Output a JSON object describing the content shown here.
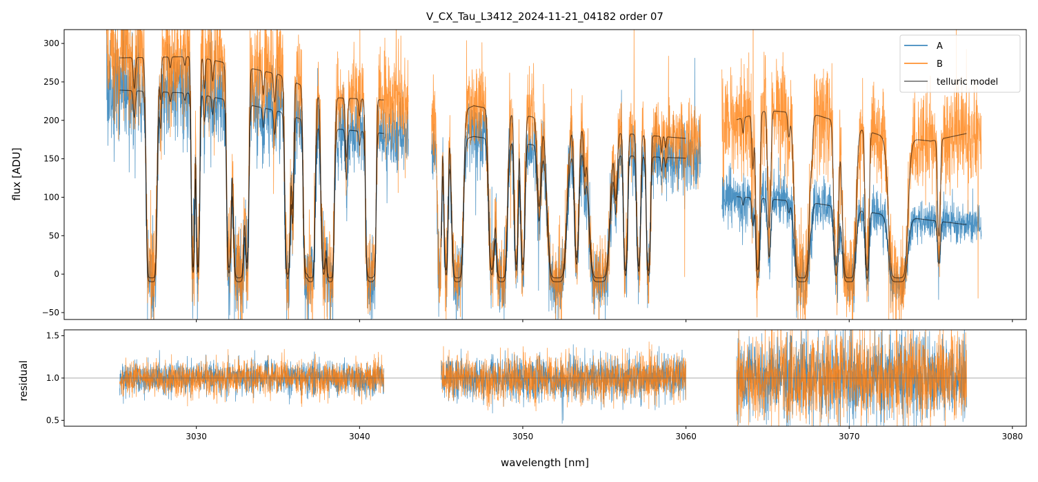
{
  "title": "V_CX_Tau_L3412_2024-11-21_04182  order 07",
  "legend": {
    "placement": "upper-right",
    "entries": [
      {
        "label": "A",
        "color": "#1f77b4"
      },
      {
        "label": "B",
        "color": "#ff7f0e"
      },
      {
        "label": "telluric model",
        "color": "#666666"
      }
    ]
  },
  "chart_data": [
    {
      "type": "line",
      "panel": "flux",
      "title": "V_CX_Tau_L3412_2024-11-21_04182  order 07",
      "xlabel": "",
      "ylabel": "flux [ADU]",
      "xlim": [
        3021.9,
        3080.85
      ],
      "ylim": [
        -59,
        318
      ],
      "xticks": [
        3030,
        3040,
        3050,
        3060,
        3070,
        3080
      ],
      "yticks": [
        300,
        250,
        200,
        150,
        100,
        50,
        0,
        -50
      ],
      "ytick_labels": [
        "300",
        "250",
        "200",
        "150",
        "100",
        "50",
        "0",
        "−50"
      ],
      "grid": false,
      "series": [
        {
          "name": "A",
          "color": "#1f77b4",
          "offset": -10,
          "noise": 0.13
        },
        {
          "name": "B",
          "color": "#ff7f0e",
          "offset": -5,
          "noise": 0.13
        },
        {
          "name": "telluric model",
          "color": "#000000",
          "alpha": 0.6
        }
      ],
      "data_ranges_nm": [
        [
          3024.5,
          3043.0
        ],
        [
          3044.4,
          3060.9
        ],
        [
          3062.2,
          3078.1
        ]
      ],
      "model_ranges_nm": [
        [
          3025.3,
          3041.5
        ],
        [
          3045.0,
          3060.0
        ],
        [
          3063.1,
          3077.2
        ]
      ],
      "continuum": [
        {
          "range": 0,
          "points": [
            [
              3024.5,
              250,
              286
            ],
            [
              3030,
              245,
              288
            ],
            [
              3035,
              222,
              265
            ],
            [
              3038,
              200,
              235
            ],
            [
              3043,
              190,
              230
            ]
          ]
        },
        {
          "range": 1,
          "points": [
            [
              3044.4,
              175,
              200
            ],
            [
              3047,
              189,
              224
            ],
            [
              3050,
              180,
              212
            ],
            [
              3055,
              165,
              190
            ],
            [
              3060.9,
              160,
              180
            ]
          ]
        },
        {
          "range": 2,
          "points": [
            [
              3062.2,
              112,
              200
            ],
            [
              3065,
              108,
              218
            ],
            [
              3068,
              102,
              212
            ],
            [
              3072,
              88,
              185
            ],
            [
              3075,
              80,
              178
            ],
            [
              3078.1,
              72,
              192
            ]
          ]
        }
      ],
      "absorption_lines": [
        [
          3026.2,
          0.15,
          0.06
        ],
        [
          3027.1,
          3,
          0.1
        ],
        [
          3027.3,
          8,
          0.14
        ],
        [
          3027.8,
          0.2,
          0.05
        ],
        [
          3028.4,
          0.05,
          0.05
        ],
        [
          3029.3,
          0.04,
          0.05
        ],
        [
          3029.8,
          3,
          0.07
        ],
        [
          3030.1,
          3,
          0.07
        ],
        [
          3030.5,
          0.15,
          0.05
        ],
        [
          3031.0,
          0.1,
          0.05
        ],
        [
          3032.0,
          3,
          0.09
        ],
        [
          3032.6,
          8,
          0.17
        ],
        [
          3033.1,
          2.5,
          0.08
        ],
        [
          3034.1,
          0.12,
          0.05
        ],
        [
          3034.8,
          0.15,
          0.06
        ],
        [
          3035.6,
          4,
          0.1
        ],
        [
          3035.9,
          1,
          0.06
        ],
        [
          3036.7,
          3,
          0.09
        ],
        [
          3037.0,
          8,
          0.13
        ],
        [
          3037.8,
          3,
          0.1
        ],
        [
          3038.2,
          8,
          0.12
        ],
        [
          3039.2,
          0.4,
          0.06
        ],
        [
          3040.0,
          0.1,
          0.05
        ],
        [
          3040.5,
          3,
          0.08
        ],
        [
          3040.7,
          8,
          0.1
        ],
        [
          3040.9,
          3,
          0.07
        ],
        [
          3044.9,
          3,
          0.08
        ],
        [
          3045.3,
          3,
          0.08
        ],
        [
          3046.0,
          8,
          0.17
        ],
        [
          3048.1,
          3,
          0.12
        ],
        [
          3048.7,
          8,
          0.17
        ],
        [
          3049.6,
          2.5,
          0.08
        ],
        [
          3050.0,
          2.5,
          0.09
        ],
        [
          3051.0,
          0.8,
          0.1
        ],
        [
          3052.1,
          8,
          0.28
        ],
        [
          3053.3,
          2,
          0.1
        ],
        [
          3053.8,
          0.3,
          0.06
        ],
        [
          3054.7,
          8,
          0.3
        ],
        [
          3055.7,
          0.6,
          0.08
        ],
        [
          3056.3,
          3,
          0.08
        ],
        [
          3057.1,
          2.5,
          0.08
        ],
        [
          3057.7,
          3,
          0.08
        ],
        [
          3058.5,
          0.12,
          0.04
        ],
        [
          3058.75,
          0.08,
          0.04
        ],
        [
          3063.5,
          0.1,
          0.05
        ],
        [
          3064.1,
          0.4,
          0.06
        ],
        [
          3064.4,
          3,
          0.08
        ],
        [
          3065.1,
          1.2,
          0.08
        ],
        [
          3066.3,
          0.15,
          0.06
        ],
        [
          3067.1,
          8,
          0.22
        ],
        [
          3067.7,
          0.2,
          0.06
        ],
        [
          3069.2,
          2.5,
          0.1
        ],
        [
          3070.0,
          8,
          0.2
        ],
        [
          3071.1,
          3,
          0.08
        ],
        [
          3072.6,
          0.2,
          0.08
        ],
        [
          3073.0,
          8,
          0.28
        ],
        [
          3075.5,
          1.2,
          0.07
        ]
      ],
      "random_seed": 7
    },
    {
      "type": "line",
      "panel": "residual",
      "xlabel": "wavelength [nm]",
      "ylabel": "residual",
      "xlim": [
        3021.9,
        3080.85
      ],
      "ylim": [
        0.43,
        1.57
      ],
      "xticks": [
        3030,
        3040,
        3050,
        3060,
        3070,
        3080
      ],
      "xtick_labels": [
        "3030",
        "3040",
        "3050",
        "3060",
        "3070",
        "3080"
      ],
      "yticks": [
        1.5,
        1.0,
        0.5
      ],
      "ytick_labels": [
        "1.5",
        "1.0",
        "0.5"
      ],
      "reference_line": 1.0,
      "series": [
        {
          "name": "A",
          "color": "#1f77b4"
        },
        {
          "name": "B",
          "color": "#ff7f0e"
        }
      ],
      "ranges_nm": [
        [
          3025.3,
          3041.5
        ],
        [
          3045.0,
          3060.0
        ],
        [
          3063.1,
          3077.2
        ]
      ],
      "scatter_sigma": [
        0.1,
        0.13,
        0.25
      ]
    }
  ]
}
